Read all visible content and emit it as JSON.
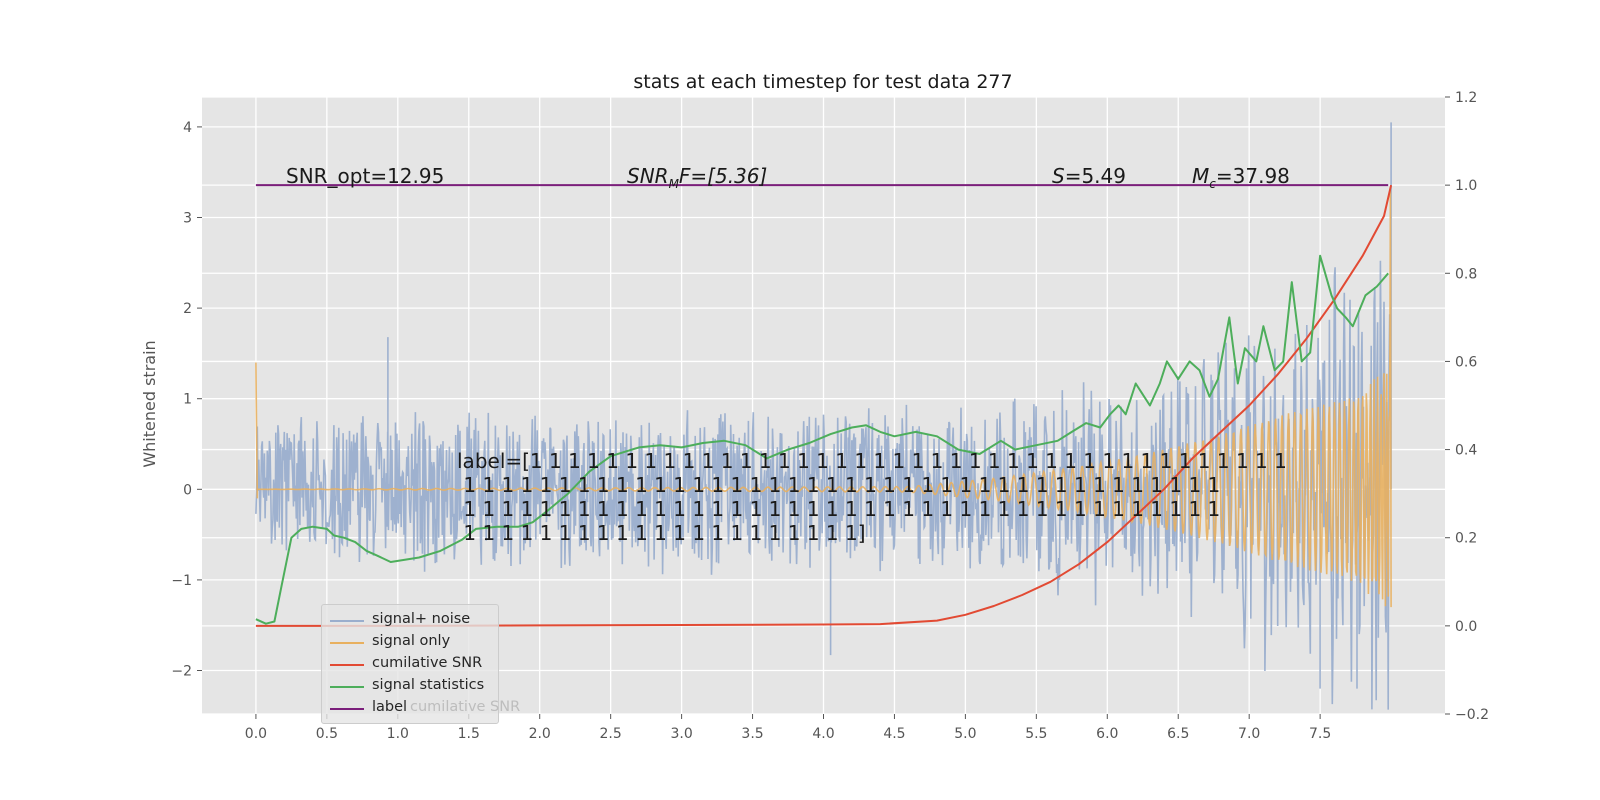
{
  "chart_data": {
    "type": "line",
    "title": "stats at each timestep for test data 277",
    "ylabel": "Whitened strain",
    "xlim": [
      -0.38,
      8.38
    ],
    "ylim": [
      -2.48,
      4.33
    ],
    "y2lim": [
      -0.2,
      1.2
    ],
    "x_ticks": [
      "0.0",
      "0.5",
      "1.0",
      "1.5",
      "2.0",
      "2.5",
      "3.0",
      "3.5",
      "4.0",
      "4.5",
      "5.0",
      "5.5",
      "6.0",
      "6.5",
      "7.0",
      "7.5"
    ],
    "y_ticks": [
      "−2",
      "−1",
      "0",
      "1",
      "2",
      "3",
      "4"
    ],
    "y2_ticks": [
      "−0.2",
      "0.0",
      "0.2",
      "0.4",
      "0.6",
      "0.8",
      "1.0",
      "1.2"
    ],
    "grid": true,
    "legend_position": "lower-left",
    "series": [
      {
        "name": "signal+ noise",
        "color": "#9aaecd",
        "axis": "left",
        "noise_envelope": [
          {
            "x": 0.0,
            "amp": 0.9
          },
          {
            "x": 2.0,
            "amp": 0.95
          },
          {
            "x": 4.0,
            "amp": 1.0
          },
          {
            "x": 5.5,
            "amp": 1.05
          },
          {
            "x": 6.5,
            "amp": 1.2
          },
          {
            "x": 7.0,
            "amp": 1.5
          },
          {
            "x": 7.5,
            "amp": 1.8
          },
          {
            "x": 8.0,
            "amp": 2.1
          }
        ],
        "peaks": [
          {
            "x": 0.93,
            "y": 1.68
          },
          {
            "x": 4.05,
            "y": -1.83
          },
          {
            "x": 7.5,
            "y": -2.2
          },
          {
            "x": 7.76,
            "y": -2.2
          },
          {
            "x": 8.0,
            "y": 4.05
          }
        ]
      },
      {
        "name": "signal only",
        "color": "#e8b05f",
        "axis": "left",
        "envelope": [
          {
            "x": 0.0,
            "amp": 0.0
          },
          {
            "x": 4.6,
            "amp": 0.03
          },
          {
            "x": 5.2,
            "amp": 0.12
          },
          {
            "x": 5.8,
            "amp": 0.25
          },
          {
            "x": 6.3,
            "amp": 0.4
          },
          {
            "x": 6.8,
            "amp": 0.6
          },
          {
            "x": 7.3,
            "amp": 0.85
          },
          {
            "x": 7.7,
            "amp": 1.0
          },
          {
            "x": 7.95,
            "amp": 1.3
          }
        ],
        "start_spike": 1.4
      },
      {
        "name": "cumilative SNR",
        "color": "#e24a33",
        "axis": "right",
        "x": [
          0.0,
          1.0,
          2.0,
          3.0,
          4.0,
          4.4,
          4.8,
          5.0,
          5.2,
          5.4,
          5.6,
          5.8,
          6.0,
          6.2,
          6.4,
          6.6,
          6.8,
          7.0,
          7.2,
          7.4,
          7.6,
          7.8,
          7.95,
          8.0
        ],
        "y": [
          0.0,
          0.0,
          0.001,
          0.002,
          0.003,
          0.004,
          0.012,
          0.025,
          0.045,
          0.07,
          0.1,
          0.14,
          0.19,
          0.25,
          0.31,
          0.38,
          0.44,
          0.5,
          0.57,
          0.65,
          0.74,
          0.84,
          0.93,
          1.0
        ]
      },
      {
        "name": "signal statistics",
        "color": "#4dae5b",
        "axis": "right",
        "x": [
          0.0,
          0.07,
          0.13,
          0.18,
          0.25,
          0.32,
          0.4,
          0.5,
          0.55,
          0.62,
          0.7,
          0.78,
          0.85,
          0.95,
          1.05,
          1.15,
          1.3,
          1.45,
          1.55,
          1.7,
          1.85,
          1.95,
          2.05,
          2.2,
          2.35,
          2.5,
          2.7,
          2.85,
          3.0,
          3.15,
          3.3,
          3.45,
          3.6,
          3.75,
          3.9,
          4.05,
          4.2,
          4.3,
          4.4,
          4.5,
          4.65,
          4.8,
          4.95,
          5.1,
          5.25,
          5.35,
          5.5,
          5.65,
          5.75,
          5.85,
          5.95,
          6.02,
          6.08,
          6.13,
          6.2,
          6.3,
          6.37,
          6.42,
          6.5,
          6.58,
          6.65,
          6.72,
          6.78,
          6.86,
          6.92,
          6.97,
          7.05,
          7.1,
          7.18,
          7.24,
          7.3,
          7.37,
          7.43,
          7.5,
          7.58,
          7.62,
          7.68,
          7.73,
          7.82,
          7.9,
          7.98
        ],
        "y": [
          0.015,
          0.005,
          0.01,
          0.09,
          0.2,
          0.22,
          0.225,
          0.22,
          0.205,
          0.2,
          0.19,
          0.17,
          0.16,
          0.145,
          0.15,
          0.155,
          0.17,
          0.195,
          0.22,
          0.225,
          0.225,
          0.235,
          0.26,
          0.3,
          0.35,
          0.385,
          0.405,
          0.41,
          0.405,
          0.415,
          0.42,
          0.41,
          0.38,
          0.4,
          0.415,
          0.435,
          0.45,
          0.455,
          0.44,
          0.43,
          0.44,
          0.43,
          0.4,
          0.39,
          0.42,
          0.4,
          0.41,
          0.42,
          0.44,
          0.46,
          0.45,
          0.48,
          0.5,
          0.48,
          0.55,
          0.5,
          0.55,
          0.6,
          0.56,
          0.6,
          0.58,
          0.52,
          0.56,
          0.7,
          0.55,
          0.63,
          0.6,
          0.68,
          0.58,
          0.6,
          0.78,
          0.6,
          0.62,
          0.84,
          0.75,
          0.72,
          0.7,
          0.68,
          0.75,
          0.77,
          0.8
        ]
      },
      {
        "name": "label",
        "color": "#7b1f7b",
        "axis": "right",
        "x": [
          0.0,
          7.98
        ],
        "y": [
          1.0,
          1.0
        ]
      }
    ],
    "annotations": {
      "snr_opt": "SNR_opt=12.95",
      "snr_mf_main": "SNR",
      "snr_mf_sub": "M",
      "snr_mf_rest": "F=[5.36]",
      "s_main": "S",
      "s_rest": "=5.49",
      "mc_main": "M",
      "mc_sub": "c",
      "mc_rest": "=37.98",
      "label_text": "label=[1 1 1 1 1 1 1 1 1 1 1 1 1 1 1 1 1 1 1 1 1 1 1 1 1 1 1 1 1 1 1 1 1 1 1 1 1 1 1 1\n 1 1 1 1 1 1 1 1 1 1 1 1 1 1 1 1 1 1 1 1 1 1 1 1 1 1 1 1 1 1 1 1 1 1 1 1 1 1 1 1\n 1 1 1 1 1 1 1 1 1 1 1 1 1 1 1 1 1 1 1 1 1 1 1 1 1 1 1 1 1 1 1 1 1 1 1 1 1 1 1 1\n 1 1 1 1 1 1 1 1 1 1 1 1 1 1 1 1 1 1 1 1 1]",
      "legend_ghost": "cumilative SNR"
    }
  }
}
